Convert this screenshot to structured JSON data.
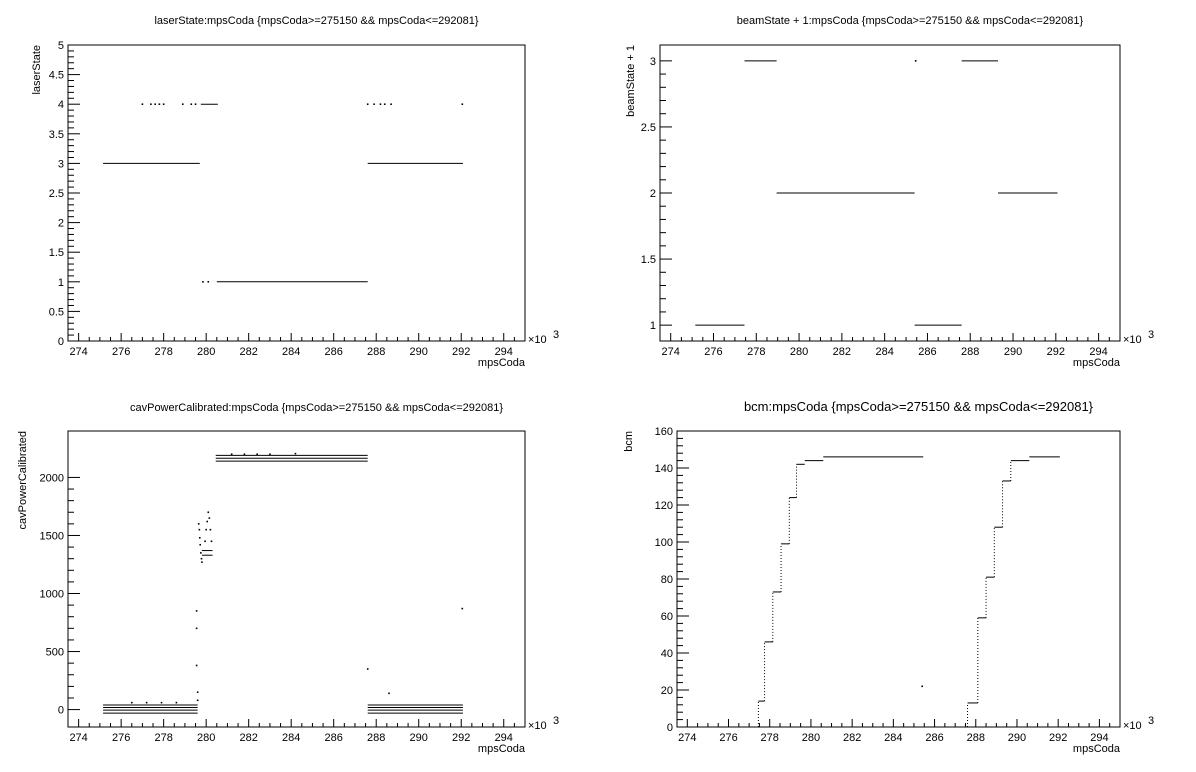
{
  "chart_data": [
    {
      "type": "scatter",
      "title": "laserState:mpsCoda {mpsCoda>=275150 && mpsCoda<=292081}",
      "xlabel": "mpsCoda",
      "ylabel": "laserState",
      "x_exponent_label": "×10",
      "x_exponent_power": "3",
      "xlim": [
        273.5,
        295
      ],
      "ylim": [
        0,
        5
      ],
      "x_ticks": [
        "274",
        "276",
        "278",
        "280",
        "282",
        "284",
        "286",
        "288",
        "290",
        "292",
        "294"
      ],
      "y_ticks": [
        "0",
        "0.5",
        "1",
        "1.5",
        "2",
        "2.5",
        "3",
        "3.5",
        "4",
        "4.5",
        "5"
      ],
      "segments": [
        {
          "x0": 275.15,
          "x1": 279.7,
          "y": 3
        },
        {
          "x0": 279.75,
          "x1": 280.55,
          "y": 4
        },
        {
          "x0": 280.5,
          "x1": 287.6,
          "y": 1
        },
        {
          "x0": 287.6,
          "x1": 292.08,
          "y": 3
        }
      ],
      "points": [
        {
          "x": 277.0,
          "y": 4
        },
        {
          "x": 277.4,
          "y": 4
        },
        {
          "x": 277.6,
          "y": 4
        },
        {
          "x": 277.8,
          "y": 4
        },
        {
          "x": 278.0,
          "y": 4
        },
        {
          "x": 278.9,
          "y": 4
        },
        {
          "x": 279.3,
          "y": 4
        },
        {
          "x": 279.5,
          "y": 4
        },
        {
          "x": 279.85,
          "y": 1
        },
        {
          "x": 280.1,
          "y": 1
        },
        {
          "x": 287.6,
          "y": 4
        },
        {
          "x": 287.9,
          "y": 4
        },
        {
          "x": 288.2,
          "y": 4
        },
        {
          "x": 288.4,
          "y": 4
        },
        {
          "x": 288.7,
          "y": 4
        },
        {
          "x": 292.05,
          "y": 4
        }
      ]
    },
    {
      "type": "scatter",
      "title": "beamState + 1:mpsCoda {mpsCoda>=275150 && mpsCoda<=292081}",
      "xlabel": "mpsCoda",
      "ylabel": "beamState + 1",
      "x_exponent_label": "×10",
      "x_exponent_power": "3",
      "xlim": [
        273.5,
        295
      ],
      "ylim": [
        0.88,
        3.12
      ],
      "x_ticks": [
        "274",
        "276",
        "278",
        "280",
        "282",
        "284",
        "286",
        "288",
        "290",
        "292",
        "294"
      ],
      "y_ticks": [
        "1",
        "1.5",
        "2",
        "2.5",
        "3"
      ],
      "y_tick_values": [
        1,
        1.5,
        2,
        2.5,
        3
      ],
      "segments": [
        {
          "x0": 275.15,
          "x1": 277.45,
          "y": 1
        },
        {
          "x0": 277.45,
          "x1": 278.95,
          "y": 3
        },
        {
          "x0": 278.95,
          "x1": 285.4,
          "y": 2
        },
        {
          "x0": 285.4,
          "x1": 287.6,
          "y": 1
        },
        {
          "x0": 287.6,
          "x1": 289.3,
          "y": 3
        },
        {
          "x0": 289.3,
          "x1": 292.08,
          "y": 2
        }
      ],
      "points": [
        {
          "x": 285.45,
          "y": 3
        }
      ]
    },
    {
      "type": "scatter",
      "title": "cavPowerCalibrated:mpsCoda {mpsCoda>=275150 && mpsCoda<=292081}",
      "xlabel": "mpsCoda",
      "ylabel": "cavPowerCalibrated",
      "x_exponent_label": "×10",
      "x_exponent_power": "3",
      "xlim": [
        273.5,
        295
      ],
      "ylim": [
        -150,
        2400
      ],
      "x_ticks": [
        "274",
        "276",
        "278",
        "280",
        "282",
        "284",
        "286",
        "288",
        "290",
        "292",
        "294"
      ],
      "y_ticks": [
        "0",
        "500",
        "1000",
        "1500",
        "2000"
      ],
      "y_tick_values": [
        0,
        500,
        1000,
        1500,
        2000
      ],
      "segments": [
        {
          "x0": 275.15,
          "x1": 279.6,
          "y": 40
        },
        {
          "x0": 275.15,
          "x1": 279.6,
          "y": 18
        },
        {
          "x0": 275.15,
          "x1": 279.6,
          "y": -5
        },
        {
          "x0": 275.15,
          "x1": 279.6,
          "y": -30
        },
        {
          "x0": 280.45,
          "x1": 287.6,
          "y": 2190
        },
        {
          "x0": 280.45,
          "x1": 287.6,
          "y": 2165
        },
        {
          "x0": 280.45,
          "x1": 287.6,
          "y": 2140
        },
        {
          "x0": 287.6,
          "x1": 292.08,
          "y": 40
        },
        {
          "x0": 287.6,
          "x1": 292.08,
          "y": 18
        },
        {
          "x0": 287.6,
          "x1": 292.08,
          "y": -5
        },
        {
          "x0": 287.6,
          "x1": 292.08,
          "y": -30
        },
        {
          "x0": 279.8,
          "x1": 280.3,
          "y": 1330
        },
        {
          "x0": 279.8,
          "x1": 280.3,
          "y": 1370
        }
      ],
      "points": [
        {
          "x": 279.55,
          "y": 850
        },
        {
          "x": 279.55,
          "y": 700
        },
        {
          "x": 279.55,
          "y": 380
        },
        {
          "x": 279.6,
          "y": 150
        },
        {
          "x": 279.6,
          "y": 80
        },
        {
          "x": 279.65,
          "y": 1600
        },
        {
          "x": 279.68,
          "y": 1550
        },
        {
          "x": 279.7,
          "y": 1480
        },
        {
          "x": 279.72,
          "y": 1420
        },
        {
          "x": 279.75,
          "y": 1350
        },
        {
          "x": 279.78,
          "y": 1300
        },
        {
          "x": 279.8,
          "y": 1270
        },
        {
          "x": 279.95,
          "y": 1450
        },
        {
          "x": 280.0,
          "y": 1550
        },
        {
          "x": 280.05,
          "y": 1620
        },
        {
          "x": 280.1,
          "y": 1700
        },
        {
          "x": 280.15,
          "y": 1650
        },
        {
          "x": 280.2,
          "y": 1550
        },
        {
          "x": 280.25,
          "y": 1450
        },
        {
          "x": 276.5,
          "y": 60
        },
        {
          "x": 277.2,
          "y": 60
        },
        {
          "x": 277.9,
          "y": 60
        },
        {
          "x": 278.6,
          "y": 60
        },
        {
          "x": 281.2,
          "y": 2200
        },
        {
          "x": 281.8,
          "y": 2200
        },
        {
          "x": 282.4,
          "y": 2200
        },
        {
          "x": 283.0,
          "y": 2200
        },
        {
          "x": 284.2,
          "y": 2205
        },
        {
          "x": 287.6,
          "y": 350
        },
        {
          "x": 288.6,
          "y": 140
        },
        {
          "x": 292.05,
          "y": 870
        }
      ]
    },
    {
      "type": "scatter",
      "title": "bcm:mpsCoda {mpsCoda>=275150 && mpsCoda<=292081}",
      "xlabel": "mpsCoda",
      "ylabel": "bcm",
      "x_exponent_label": "×10",
      "x_exponent_power": "3",
      "xlim": [
        273.5,
        295
      ],
      "ylim": [
        0,
        160
      ],
      "x_ticks": [
        "274",
        "276",
        "278",
        "280",
        "282",
        "284",
        "286",
        "288",
        "290",
        "292",
        "294"
      ],
      "y_ticks": [
        "0",
        "20",
        "40",
        "60",
        "80",
        "100",
        "120",
        "140",
        "160"
      ],
      "y_tick_values": [
        0,
        20,
        40,
        60,
        80,
        100,
        120,
        140,
        160
      ],
      "segments": [
        {
          "x0": 273.5,
          "x1": 277.4,
          "y": 0
        },
        {
          "x0": 277.45,
          "x1": 277.75,
          "y": 14
        },
        {
          "x0": 277.75,
          "x1": 278.15,
          "y": 46
        },
        {
          "x0": 278.15,
          "x1": 278.55,
          "y": 73
        },
        {
          "x0": 278.55,
          "x1": 278.95,
          "y": 99
        },
        {
          "x0": 278.95,
          "x1": 279.3,
          "y": 124
        },
        {
          "x0": 279.3,
          "x1": 279.7,
          "y": 142
        },
        {
          "x0": 279.7,
          "x1": 280.6,
          "y": 144
        },
        {
          "x0": 280.6,
          "x1": 285.45,
          "y": 146
        },
        {
          "x0": 285.45,
          "x1": 287.55,
          "y": 0
        },
        {
          "x0": 287.6,
          "x1": 288.1,
          "y": 13
        },
        {
          "x0": 288.1,
          "x1": 288.5,
          "y": 59
        },
        {
          "x0": 288.5,
          "x1": 288.9,
          "y": 81
        },
        {
          "x0": 288.9,
          "x1": 289.3,
          "y": 108
        },
        {
          "x0": 289.3,
          "x1": 289.7,
          "y": 133
        },
        {
          "x0": 289.7,
          "x1": 290.6,
          "y": 144
        },
        {
          "x0": 290.6,
          "x1": 292.08,
          "y": 146
        }
      ],
      "points": [
        {
          "x": 285.4,
          "y": 22
        }
      ],
      "risers": [
        {
          "x": 277.45,
          "y0": 0,
          "y1": 14
        },
        {
          "x": 277.75,
          "y0": 14,
          "y1": 46
        },
        {
          "x": 278.15,
          "y0": 46,
          "y1": 73
        },
        {
          "x": 278.55,
          "y0": 73,
          "y1": 99
        },
        {
          "x": 278.95,
          "y0": 99,
          "y1": 124
        },
        {
          "x": 279.3,
          "y0": 124,
          "y1": 142
        },
        {
          "x": 287.6,
          "y0": 0,
          "y1": 13
        },
        {
          "x": 288.1,
          "y0": 13,
          "y1": 59
        },
        {
          "x": 288.5,
          "y0": 59,
          "y1": 81
        },
        {
          "x": 288.9,
          "y0": 81,
          "y1": 108
        },
        {
          "x": 289.3,
          "y0": 108,
          "y1": 133
        },
        {
          "x": 289.7,
          "y0": 133,
          "y1": 144
        }
      ]
    }
  ]
}
